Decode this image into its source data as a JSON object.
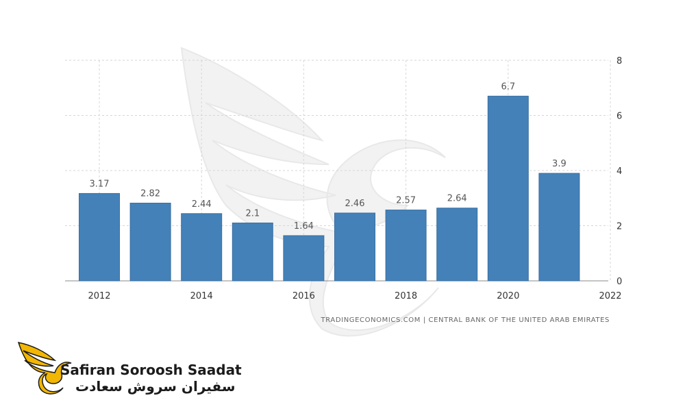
{
  "chart_data": {
    "type": "bar",
    "categories": [
      "2012",
      "2013",
      "2014",
      "2015",
      "2016",
      "2017",
      "2018",
      "2019",
      "2020",
      "2021"
    ],
    "values": [
      3.17,
      2.82,
      2.44,
      2.1,
      1.64,
      2.46,
      2.57,
      2.64,
      6.7,
      3.9
    ],
    "value_labels": [
      "3.17",
      "2.82",
      "2.44",
      "2.1",
      "1.64",
      "2.46",
      "2.57",
      "2.64",
      "6.7",
      "3.9"
    ],
    "x_tick_labels": [
      "2012",
      "2014",
      "2016",
      "2018",
      "2020",
      "2022"
    ],
    "y_tick_labels": [
      "0",
      "2",
      "4",
      "6",
      "8"
    ],
    "ylim": [
      0,
      8
    ],
    "y_axis_position": "right",
    "grid": true,
    "bar_color": "#4481b9",
    "title": "",
    "xlabel": "",
    "ylabel": ""
  },
  "source": "TRADINGECONOMICS.COM  |  CENTRAL BANK OF THE UNITED ARAB EMIRATES",
  "brand": {
    "name_en": "Safiran Soroosh Saadat",
    "name_fa": "سفیران سروش سعادت",
    "colors": {
      "gold": "#f2b705",
      "dark": "#1b1b1b"
    }
  }
}
